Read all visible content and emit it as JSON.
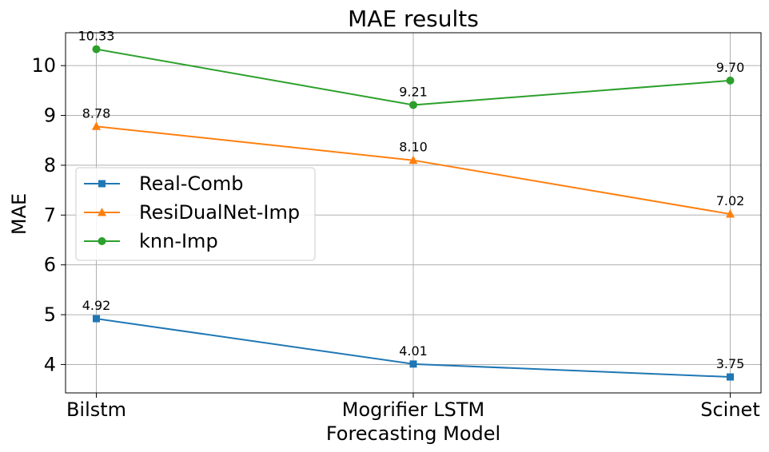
{
  "chart_data": {
    "type": "line",
    "title": "MAE results",
    "xlabel": "Forecasting Model",
    "ylabel": "MAE",
    "categories": [
      "Bilstm",
      "Mogrifier LSTM",
      "Scinet"
    ],
    "ylim": [
      3.43,
      10.66
    ],
    "yticks": [
      4,
      5,
      6,
      7,
      8,
      9,
      10
    ],
    "grid": true,
    "legend_position": "center-left",
    "series": [
      {
        "name": "Real-Comb",
        "values": [
          4.92,
          4.01,
          3.75
        ],
        "labels": [
          "4.92",
          "4.01",
          "3.75"
        ],
        "color": "#1f77b4",
        "marker": "square"
      },
      {
        "name": "ResiDualNet-Imp",
        "values": [
          8.78,
          8.1,
          7.02
        ],
        "labels": [
          "8.78",
          "8.10",
          "7.02"
        ],
        "color": "#ff7f0e",
        "marker": "triangle"
      },
      {
        "name": "knn-Imp",
        "values": [
          10.33,
          9.21,
          9.7
        ],
        "labels": [
          "10.33",
          "9.21",
          "9.70"
        ],
        "color": "#2ca02c",
        "marker": "circle"
      }
    ]
  }
}
